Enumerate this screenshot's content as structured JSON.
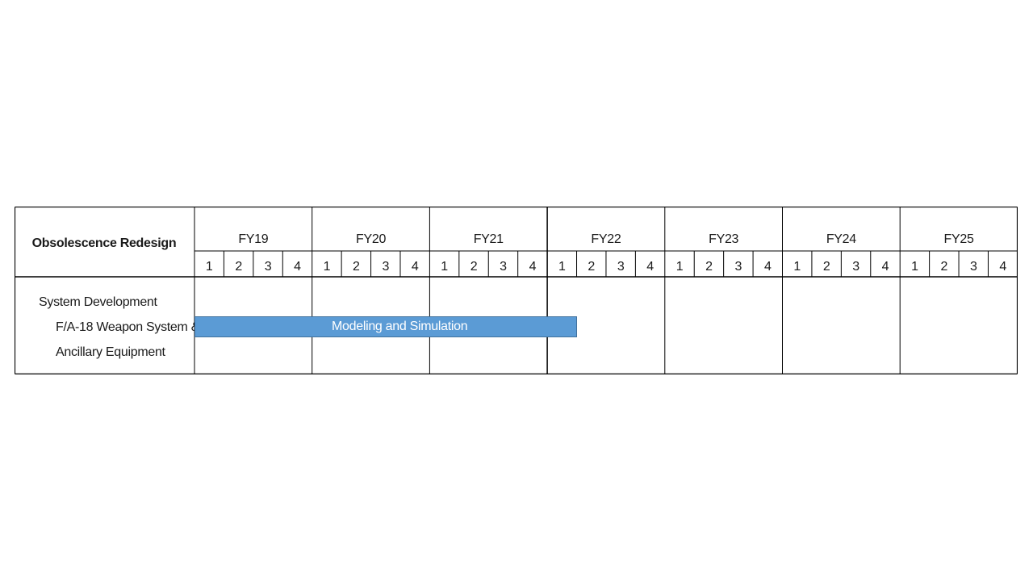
{
  "header": {
    "title": "Obsolescence Redesign"
  },
  "fiscal_years": [
    "FY19",
    "FY20",
    "FY21",
    "FY22",
    "FY23",
    "FY24",
    "FY25"
  ],
  "quarters": [
    "1",
    "2",
    "3",
    "4"
  ],
  "rows": [
    {
      "line1": "System Development",
      "line2": "F/A-18 Weapon System &",
      "line3": "Ancillary Equipment"
    }
  ],
  "tasks": [
    {
      "label": "Modeling and Simulation",
      "start_year": "FY19",
      "start_quarter": 1,
      "end_year": "FY22",
      "end_quarter": 1,
      "color": "#5b9bd5"
    }
  ],
  "colors": {
    "grid": "#000000",
    "bar": "#5b9bd5",
    "bar_border": "#41719c"
  }
}
